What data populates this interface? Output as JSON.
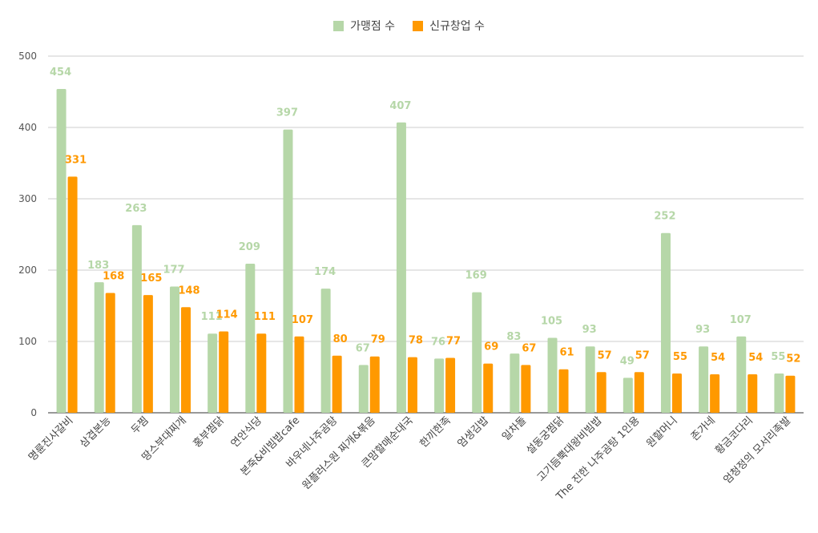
{
  "chart_data": {
    "type": "bar",
    "categories": [
      "명륜진사갈비",
      "삼겹본능",
      "두찜",
      "땅스부대찌개",
      "홍부찜닭",
      "연안식당",
      "본죽&비빔밥cafe",
      "바우네나주곰탕",
      "원플러스원 찌개&볶음",
      "큰맘할매순대국",
      "한끼한족",
      "엄생김밥",
      "일차돌",
      "설동궁찜닭",
      "고기듬뿍대왕비빔밥",
      "The 진한 나주곰탕 1인용",
      "원할머니",
      "존가네",
      "황금코다리",
      "엄청정의 모서리족발"
    ],
    "series": [
      {
        "name": "가맹점 수",
        "color": "#b6d7a8",
        "label_color": "#b6d7a8",
        "values": [
          454,
          183,
          263,
          177,
          111,
          209,
          397,
          174,
          67,
          407,
          76,
          169,
          83,
          105,
          93,
          49,
          252,
          93,
          107,
          55
        ]
      },
      {
        "name": "신규창업 수",
        "color": "#ff9900",
        "label_color": "#ff9900",
        "values": [
          331,
          168,
          165,
          148,
          114,
          111,
          107,
          80,
          79,
          78,
          77,
          69,
          67,
          61,
          57,
          57,
          55,
          54,
          54,
          52
        ]
      }
    ],
    "ylim": [
      0,
      500
    ],
    "yticks": [
      0,
      100,
      200,
      300,
      400,
      500
    ],
    "ytick_labels": [
      "0",
      "100",
      "200",
      "300",
      "400",
      "500"
    ],
    "grid": true,
    "legend_position": "top-center"
  }
}
